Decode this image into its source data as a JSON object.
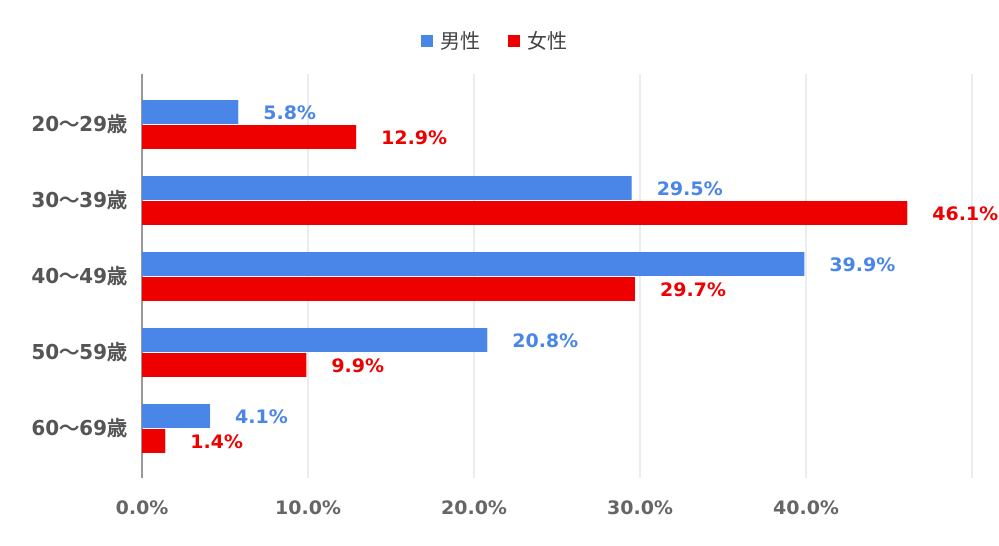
{
  "chart_data": {
    "type": "bar",
    "orientation": "horizontal",
    "categories": [
      "20〜29歳",
      "30〜39歳",
      "40〜49歳",
      "50〜59歳",
      "60〜69歳"
    ],
    "series": [
      {
        "name": "男性",
        "color": "#4a86e8",
        "values": [
          5.8,
          29.5,
          39.9,
          20.8,
          4.1
        ],
        "labels": [
          "5.8%",
          "29.5%",
          "39.9%",
          "20.8%",
          "4.1%"
        ]
      },
      {
        "name": "女性",
        "color": "#ee0000",
        "values": [
          12.9,
          46.1,
          29.7,
          9.9,
          1.4
        ],
        "labels": [
          "12.9%",
          "46.1%",
          "29.7%",
          "9.9%",
          "1.4%"
        ]
      }
    ],
    "x_ticks": [
      "0.0%",
      "10.0%",
      "20.0%",
      "30.0%",
      "40.0%"
    ],
    "xlim": [
      0,
      50
    ],
    "grid": true,
    "legend_position": "top-center"
  }
}
